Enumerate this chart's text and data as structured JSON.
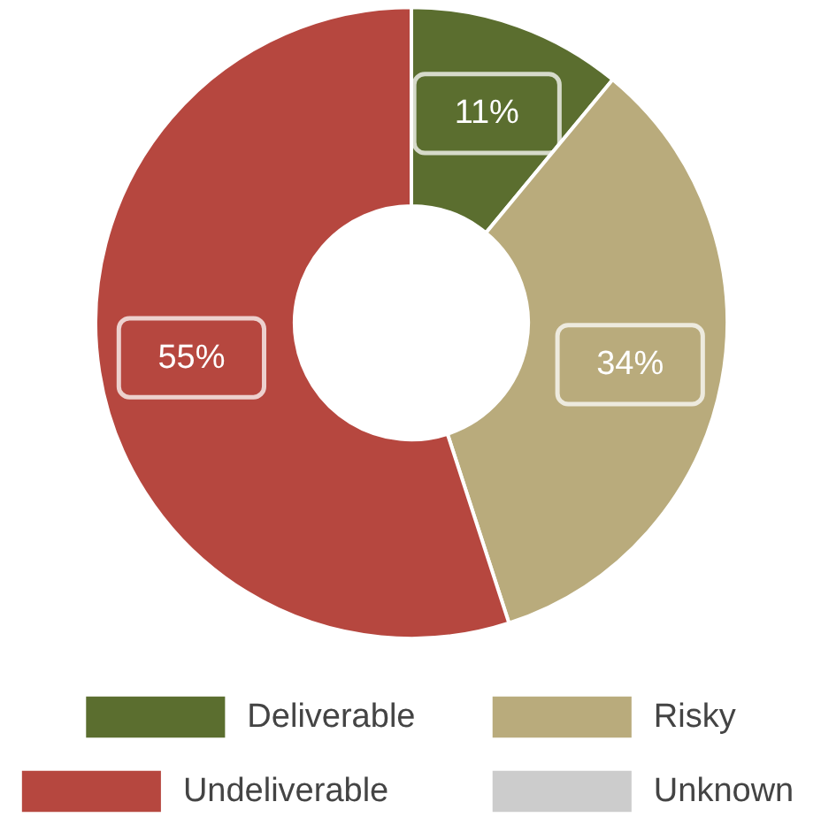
{
  "chart_data": {
    "type": "donut",
    "categories": [
      "Deliverable",
      "Risky",
      "Undeliverable",
      "Unknown"
    ],
    "values": [
      11,
      34,
      55,
      0
    ],
    "colors": [
      "#5b6e2f",
      "#b9ab7c",
      "#b6473f",
      "#cccccc"
    ],
    "data_labels": true,
    "value_labels": [
      "11%",
      "34%",
      "55%",
      null
    ],
    "legend": "bottom"
  }
}
